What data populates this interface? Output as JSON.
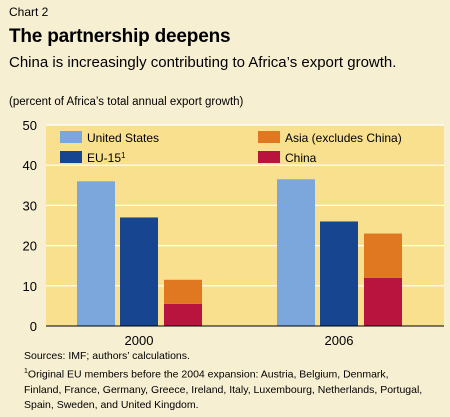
{
  "header": {
    "chart_number": "Chart 2",
    "title": "The partnership deepens",
    "subtitle": "China is increasingly contributing to Africa’s export growth.",
    "unit_note": "(percent of Africa’s total annual export growth)"
  },
  "footer": {
    "sources": "Sources: IMF; authors’ calculations.",
    "footnote_mark": "1",
    "footnote_text": "Original EU members before the 2004 expansion: Austria, Belgium, Denmark, Finland, France, Germany, Greece, Ireland, Italy, Luxembourg, Netherlands, Portugal, Spain, Sweden, and United Kingdom."
  },
  "colors": {
    "plot_bg": "#f8e08e",
    "gridline": "#ffffff",
    "page_bg": "#f6efd2",
    "united_states": "#7ba7dc",
    "eu15": "#17458f",
    "asia": "#e07822",
    "china": "#b8143d"
  },
  "chart_data": {
    "type": "bar",
    "categories": [
      "2000",
      "2006"
    ],
    "series": [
      {
        "name": "United States",
        "values": [
          36,
          36.5
        ],
        "color_key": "united_states",
        "stack": "a"
      },
      {
        "name": "EU-15",
        "name_sup": "1",
        "values": [
          27,
          26
        ],
        "color_key": "eu15",
        "stack": "b"
      },
      {
        "name": "China",
        "values": [
          5.5,
          12
        ],
        "color_key": "china",
        "stack": "c"
      },
      {
        "name": "Asia (excludes China)",
        "values": [
          6,
          11
        ],
        "color_key": "asia",
        "stack": "c"
      }
    ],
    "stacked_groups": "China and Asia (excludes China) are stacked in the third bar of each category",
    "ylim": [
      0,
      50
    ],
    "yticks": [
      0,
      10,
      20,
      30,
      40,
      50
    ],
    "grid": true,
    "legend": {
      "placement": "top",
      "items": [
        {
          "label": "United States",
          "color_key": "united_states"
        },
        {
          "label": "Asia (excludes China)",
          "color_key": "asia"
        },
        {
          "label": "EU-15",
          "sup": "1",
          "color_key": "eu15"
        },
        {
          "label": "China",
          "color_key": "china"
        }
      ]
    }
  }
}
